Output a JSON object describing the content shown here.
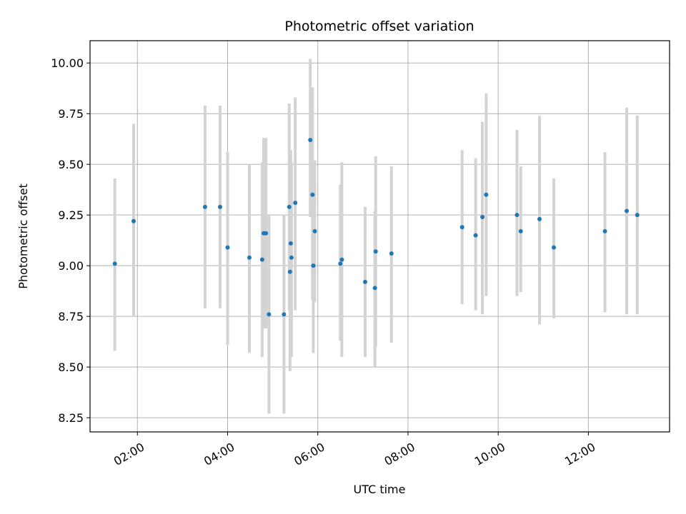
{
  "chart_data": {
    "type": "scatter",
    "title": "Photometric offset variation",
    "xlabel": "UTC time",
    "ylabel": "Photometric offset",
    "x_axis_kind": "time",
    "x_ticks": [
      "02:00",
      "04:00",
      "06:00",
      "08:00",
      "10:00",
      "12:00"
    ],
    "x_tick_rotation_deg": 30,
    "y_ticks": [
      "8.25",
      "8.50",
      "8.75",
      "9.00",
      "9.25",
      "9.50",
      "9.75",
      "10.00"
    ],
    "xlim": [
      "00:57",
      "13:48"
    ],
    "ylim": [
      8.18,
      10.11
    ],
    "grid": true,
    "marker_color": "#1f77b4",
    "errorbar_color": "#d3d3d3",
    "points": [
      {
        "x": "01:30",
        "y": 9.01,
        "ylo": 8.58,
        "yhi": 9.43
      },
      {
        "x": "01:55",
        "y": 9.22,
        "ylo": 8.75,
        "yhi": 9.7
      },
      {
        "x": "03:30",
        "y": 9.29,
        "ylo": 8.79,
        "yhi": 9.79
      },
      {
        "x": "03:50",
        "y": 9.29,
        "ylo": 8.79,
        "yhi": 9.79
      },
      {
        "x": "04:00",
        "y": 9.09,
        "ylo": 8.61,
        "yhi": 9.56
      },
      {
        "x": "04:29",
        "y": 9.04,
        "ylo": 8.57,
        "yhi": 9.5
      },
      {
        "x": "04:46",
        "y": 9.03,
        "ylo": 8.55,
        "yhi": 9.51
      },
      {
        "x": "04:48",
        "y": 9.16,
        "ylo": 8.69,
        "yhi": 9.63
      },
      {
        "x": "04:51",
        "y": 9.16,
        "ylo": 8.69,
        "yhi": 9.63
      },
      {
        "x": "04:55",
        "y": 8.76,
        "ylo": 8.27,
        "yhi": 9.25
      },
      {
        "x": "05:15",
        "y": 8.76,
        "ylo": 8.27,
        "yhi": 9.25
      },
      {
        "x": "05:22",
        "y": 9.29,
        "ylo": 8.78,
        "yhi": 9.8
      },
      {
        "x": "05:23",
        "y": 8.97,
        "ylo": 8.48,
        "yhi": 9.46
      },
      {
        "x": "05:24",
        "y": 9.11,
        "ylo": 8.65,
        "yhi": 9.57
      },
      {
        "x": "05:25",
        "y": 9.04,
        "ylo": 8.55,
        "yhi": 9.51
      },
      {
        "x": "05:30",
        "y": 9.31,
        "ylo": 8.78,
        "yhi": 9.83
      },
      {
        "x": "05:50",
        "y": 9.62,
        "ylo": 9.24,
        "yhi": 10.02
      },
      {
        "x": "05:53",
        "y": 9.35,
        "ylo": 8.83,
        "yhi": 9.88
      },
      {
        "x": "05:54",
        "y": 9.0,
        "ylo": 8.57,
        "yhi": 9.45
      },
      {
        "x": "05:56",
        "y": 9.17,
        "ylo": 8.82,
        "yhi": 9.52
      },
      {
        "x": "06:30",
        "y": 9.01,
        "ylo": 8.63,
        "yhi": 9.4
      },
      {
        "x": "06:32",
        "y": 9.03,
        "ylo": 8.55,
        "yhi": 9.51
      },
      {
        "x": "07:03",
        "y": 8.92,
        "ylo": 8.55,
        "yhi": 9.29
      },
      {
        "x": "07:16",
        "y": 8.89,
        "ylo": 8.5,
        "yhi": 9.27
      },
      {
        "x": "07:17",
        "y": 9.07,
        "ylo": 8.6,
        "yhi": 9.54
      },
      {
        "x": "07:38",
        "y": 9.06,
        "ylo": 8.62,
        "yhi": 9.49
      },
      {
        "x": "09:12",
        "y": 9.19,
        "ylo": 8.81,
        "yhi": 9.57
      },
      {
        "x": "09:30",
        "y": 9.15,
        "ylo": 8.78,
        "yhi": 9.53
      },
      {
        "x": "09:39",
        "y": 9.24,
        "ylo": 8.76,
        "yhi": 9.71
      },
      {
        "x": "09:44",
        "y": 9.35,
        "ylo": 8.85,
        "yhi": 9.85
      },
      {
        "x": "10:25",
        "y": 9.25,
        "ylo": 8.85,
        "yhi": 9.67
      },
      {
        "x": "10:30",
        "y": 9.17,
        "ylo": 8.87,
        "yhi": 9.49
      },
      {
        "x": "10:55",
        "y": 9.23,
        "ylo": 8.71,
        "yhi": 9.74
      },
      {
        "x": "11:14",
        "y": 9.09,
        "ylo": 8.74,
        "yhi": 9.43
      },
      {
        "x": "12:22",
        "y": 9.17,
        "ylo": 8.77,
        "yhi": 9.56
      },
      {
        "x": "12:51",
        "y": 9.27,
        "ylo": 8.76,
        "yhi": 9.78
      },
      {
        "x": "13:05",
        "y": 9.25,
        "ylo": 8.76,
        "yhi": 9.74
      }
    ]
  }
}
